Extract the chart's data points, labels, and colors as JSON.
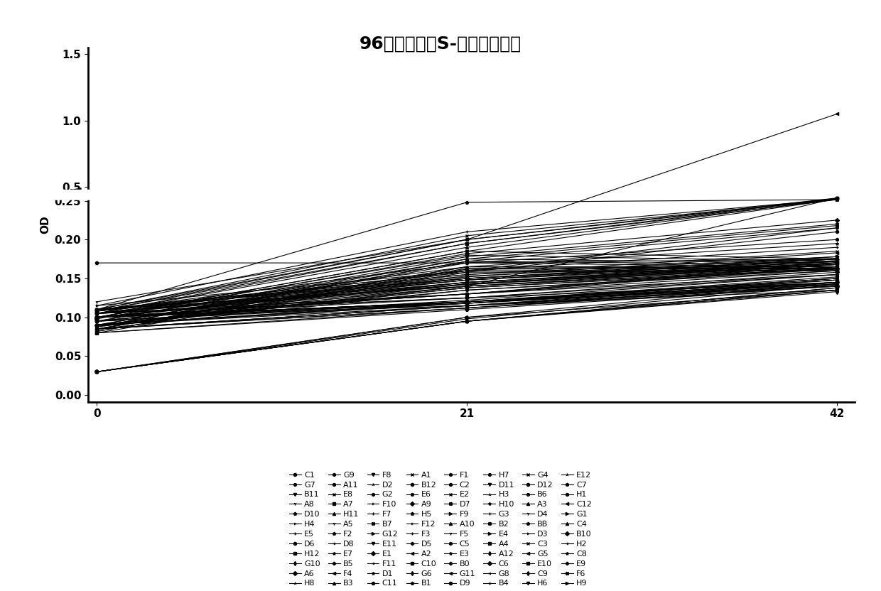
{
  "title": "96孔板筛选抗S-雌马酚突变菌",
  "ylabel": "OD",
  "x_ticks": [
    0,
    21,
    42
  ],
  "xlim": [
    -0.5,
    43
  ],
  "background_color": "#ffffff",
  "series": [
    {
      "label": "C1",
      "values": [
        0.17,
        0.17,
        0.175
      ]
    },
    {
      "label": "H12",
      "values": [
        0.11,
        0.14,
        0.3
      ]
    },
    {
      "label": "H11",
      "values": [
        0.105,
        0.13,
        0.155
      ]
    },
    {
      "label": "F8",
      "values": [
        0.105,
        0.125,
        0.145
      ]
    },
    {
      "label": "E1",
      "values": [
        0.1,
        0.12,
        0.14
      ]
    },
    {
      "label": "H5",
      "values": [
        0.1,
        0.115,
        0.135
      ]
    },
    {
      "label": "F1",
      "values": [
        0.105,
        0.125,
        0.155
      ]
    },
    {
      "label": "E3",
      "values": [
        0.1,
        0.12,
        0.15
      ]
    },
    {
      "label": "G3",
      "values": [
        0.1,
        0.12,
        0.145
      ]
    },
    {
      "label": "G4",
      "values": [
        0.09,
        0.12,
        0.145
      ]
    },
    {
      "label": "G5",
      "values": [
        0.085,
        0.115,
        0.14
      ]
    },
    {
      "label": "G1",
      "values": [
        0.03,
        0.1,
        0.135
      ]
    },
    {
      "label": "G7",
      "values": [
        0.1,
        0.13,
        0.17
      ]
    },
    {
      "label": "G10",
      "values": [
        0.1,
        0.13,
        0.165
      ]
    },
    {
      "label": "A5",
      "values": [
        0.105,
        0.13,
        0.16
      ]
    },
    {
      "label": "D2",
      "values": [
        0.1,
        0.12,
        0.15
      ]
    },
    {
      "label": "F11",
      "values": [
        0.1,
        0.12,
        0.148
      ]
    },
    {
      "label": "F12",
      "values": [
        0.1,
        0.118,
        0.145
      ]
    },
    {
      "label": "C2",
      "values": [
        0.095,
        0.12,
        0.148
      ]
    },
    {
      "label": "B0",
      "values": [
        0.095,
        0.118,
        0.145
      ]
    },
    {
      "label": "B2",
      "values": [
        0.09,
        0.118,
        0.143
      ]
    },
    {
      "label": "D12",
      "values": [
        0.09,
        0.115,
        0.142
      ]
    },
    {
      "label": "E10",
      "values": [
        0.085,
        0.112,
        0.14
      ]
    },
    {
      "label": "C4",
      "values": [
        0.03,
        0.095,
        0.135
      ]
    },
    {
      "label": "B11",
      "values": [
        0.1,
        0.13,
        0.168
      ]
    },
    {
      "label": "A6",
      "values": [
        0.1,
        0.125,
        0.158
      ]
    },
    {
      "label": "F2",
      "values": [
        0.095,
        0.122,
        0.155
      ]
    },
    {
      "label": "G2",
      "values": [
        0.09,
        0.12,
        0.152
      ]
    },
    {
      "label": "D1",
      "values": [
        0.09,
        0.118,
        0.15
      ]
    },
    {
      "label": "F3",
      "values": [
        0.085,
        0.115,
        0.148
      ]
    },
    {
      "label": "E2",
      "values": [
        0.085,
        0.115,
        0.145
      ]
    },
    {
      "label": "G11",
      "values": [
        0.085,
        0.112,
        0.145
      ]
    },
    {
      "label": "E4",
      "values": [
        0.08,
        0.112,
        0.143
      ]
    },
    {
      "label": "B6",
      "values": [
        0.08,
        0.11,
        0.14
      ]
    },
    {
      "label": "C9",
      "values": [
        0.03,
        0.095,
        0.133
      ]
    },
    {
      "label": "A8",
      "values": [
        0.12,
        0.2,
        0.28
      ]
    },
    {
      "label": "H8",
      "values": [
        0.11,
        0.15,
        0.175
      ]
    },
    {
      "label": "D8",
      "values": [
        0.105,
        0.145,
        0.17
      ]
    },
    {
      "label": "F10",
      "values": [
        0.105,
        0.142,
        0.168
      ]
    },
    {
      "label": "C11",
      "values": [
        0.11,
        0.15,
        0.175
      ]
    },
    {
      "label": "D5",
      "values": [
        0.105,
        0.148,
        0.172
      ]
    },
    {
      "label": "D7",
      "values": [
        0.1,
        0.145,
        0.17
      ]
    },
    {
      "label": "D9",
      "values": [
        0.1,
        0.143,
        0.168
      ]
    },
    {
      "label": "A4",
      "values": [
        0.095,
        0.14,
        0.165
      ]
    },
    {
      "label": "A3",
      "values": [
        0.09,
        0.138,
        0.163
      ]
    },
    {
      "label": "H6",
      "values": [
        0.09,
        0.135,
        0.162
      ]
    },
    {
      "label": "B10",
      "values": [
        0.03,
        0.1,
        0.145
      ]
    },
    {
      "label": "D10",
      "values": [
        0.11,
        0.248,
        0.27
      ]
    },
    {
      "label": "G9",
      "values": [
        0.108,
        0.17,
        0.2
      ]
    },
    {
      "label": "E7",
      "values": [
        0.105,
        0.165,
        0.195
      ]
    },
    {
      "label": "F7",
      "values": [
        0.105,
        0.16,
        0.19
      ]
    },
    {
      "label": "A1",
      "values": [
        0.11,
        0.155,
        0.185
      ]
    },
    {
      "label": "A2",
      "values": [
        0.105,
        0.152,
        0.183
      ]
    },
    {
      "label": "F9",
      "values": [
        0.1,
        0.15,
        0.178
      ]
    },
    {
      "label": "H7",
      "values": [
        0.1,
        0.148,
        0.175
      ]
    },
    {
      "label": "A12",
      "values": [
        0.095,
        0.145,
        0.172
      ]
    },
    {
      "label": "D4",
      "values": [
        0.09,
        0.143,
        0.17
      ]
    },
    {
      "label": "E12",
      "values": [
        0.088,
        0.14,
        0.168
      ]
    },
    {
      "label": "H2",
      "values": [
        0.03,
        0.098,
        0.142
      ]
    },
    {
      "label": "H4",
      "values": [
        0.115,
        0.16,
        0.215
      ]
    },
    {
      "label": "A11",
      "values": [
        0.11,
        0.158,
        0.21
      ]
    },
    {
      "label": "B5",
      "values": [
        0.108,
        0.155,
        0.178
      ]
    },
    {
      "label": "B7",
      "values": [
        0.108,
        0.153,
        0.176
      ]
    },
    {
      "label": "B12",
      "values": [
        0.105,
        0.15,
        0.173
      ]
    },
    {
      "label": "C10",
      "values": [
        0.1,
        0.148,
        0.17
      ]
    },
    {
      "label": "A10",
      "values": [
        0.1,
        0.145,
        0.168
      ]
    },
    {
      "label": "D11",
      "values": [
        0.095,
        0.143,
        0.165
      ]
    },
    {
      "label": "C6",
      "values": [
        0.09,
        0.14,
        0.163
      ]
    },
    {
      "label": "BB",
      "values": [
        0.088,
        0.138,
        0.162
      ]
    },
    {
      "label": "C7",
      "values": [
        0.085,
        0.135,
        0.16
      ]
    },
    {
      "label": "C8",
      "values": [
        0.03,
        0.095,
        0.138
      ]
    },
    {
      "label": "E5",
      "values": [
        0.115,
        0.21,
        0.28
      ]
    },
    {
      "label": "E8",
      "values": [
        0.11,
        0.205,
        0.275
      ]
    },
    {
      "label": "F4",
      "values": [
        0.108,
        0.2,
        1.05
      ]
    },
    {
      "label": "G12",
      "values": [
        0.105,
        0.195,
        0.27
      ]
    },
    {
      "label": "E6",
      "values": [
        0.1,
        0.185,
        0.175
      ]
    },
    {
      "label": "G6",
      "values": [
        0.1,
        0.18,
        0.172
      ]
    },
    {
      "label": "F5",
      "values": [
        0.095,
        0.175,
        0.17
      ]
    },
    {
      "label": "H3",
      "values": [
        0.09,
        0.172,
        0.168
      ]
    },
    {
      "label": "G8",
      "values": [
        0.088,
        0.17,
        0.165
      ]
    },
    {
      "label": "D3",
      "values": [
        0.085,
        0.165,
        0.163
      ]
    },
    {
      "label": "H1",
      "values": [
        0.085,
        0.163,
        0.162
      ]
    },
    {
      "label": "E9",
      "values": [
        0.082,
        0.16,
        0.16
      ]
    },
    {
      "label": "F6",
      "values": [
        0.03,
        0.095,
        0.138
      ]
    },
    {
      "label": "D6",
      "values": [
        0.11,
        0.2,
        0.3
      ]
    },
    {
      "label": "A7",
      "values": [
        0.108,
        0.195,
        0.295
      ]
    },
    {
      "label": "B3",
      "values": [
        0.105,
        0.19,
        0.285
      ]
    },
    {
      "label": "E11",
      "values": [
        0.1,
        0.185,
        0.275
      ]
    },
    {
      "label": "A9",
      "values": [
        0.098,
        0.182,
        0.225
      ]
    },
    {
      "label": "B1",
      "values": [
        0.095,
        0.178,
        0.22
      ]
    },
    {
      "label": "C5",
      "values": [
        0.09,
        0.175,
        0.218
      ]
    },
    {
      "label": "H10",
      "values": [
        0.088,
        0.172,
        0.215
      ]
    },
    {
      "label": "B4",
      "values": [
        0.085,
        0.165,
        0.165
      ]
    },
    {
      "label": "C3",
      "values": [
        0.082,
        0.162,
        0.163
      ]
    },
    {
      "label": "C12",
      "values": [
        0.08,
        0.158,
        0.16
      ]
    },
    {
      "label": "H9",
      "values": [
        0.03,
        0.095,
        0.135
      ]
    }
  ],
  "legend_order": [
    "C1",
    "G7",
    "B11",
    "A8",
    "D10",
    "H4",
    "E5",
    "D6",
    "H12",
    "G10",
    "A6",
    "H8",
    "G9",
    "A11",
    "E8",
    "A7",
    "H11",
    "A5",
    "F2",
    "D8",
    "E7",
    "B5",
    "F4",
    "B3",
    "F8",
    "D2",
    "G2",
    "F10",
    "F7",
    "B7",
    "G12",
    "E11",
    "E1",
    "F11",
    "D1",
    "C11",
    "A1",
    "B12",
    "E6",
    "A9",
    "H5",
    "F12",
    "F3",
    "D5",
    "A2",
    "C10",
    "G6",
    "B1",
    "F1",
    "C2",
    "E2",
    "D7",
    "F9",
    "A10",
    "F5",
    "C5",
    "E3",
    "B0",
    "G11",
    "D9",
    "H7",
    "D11",
    "H3",
    "H10",
    "G3",
    "B2",
    "E4",
    "A4",
    "A12",
    "C6",
    "G8",
    "B4",
    "G4",
    "D12",
    "B6",
    "A3",
    "D4",
    "BB",
    "D3",
    "C3",
    "G5",
    "E10",
    "C9",
    "H6",
    "E12",
    "C7",
    "H1",
    "C12",
    "G1",
    "C4",
    "",
    "B10",
    "H2",
    "C8",
    "E9",
    "H9",
    "",
    "",
    "",
    "",
    "",
    "",
    "F6",
    ""
  ],
  "title_fontsize": 18,
  "axis_fontsize": 11,
  "legend_fontsize": 8
}
